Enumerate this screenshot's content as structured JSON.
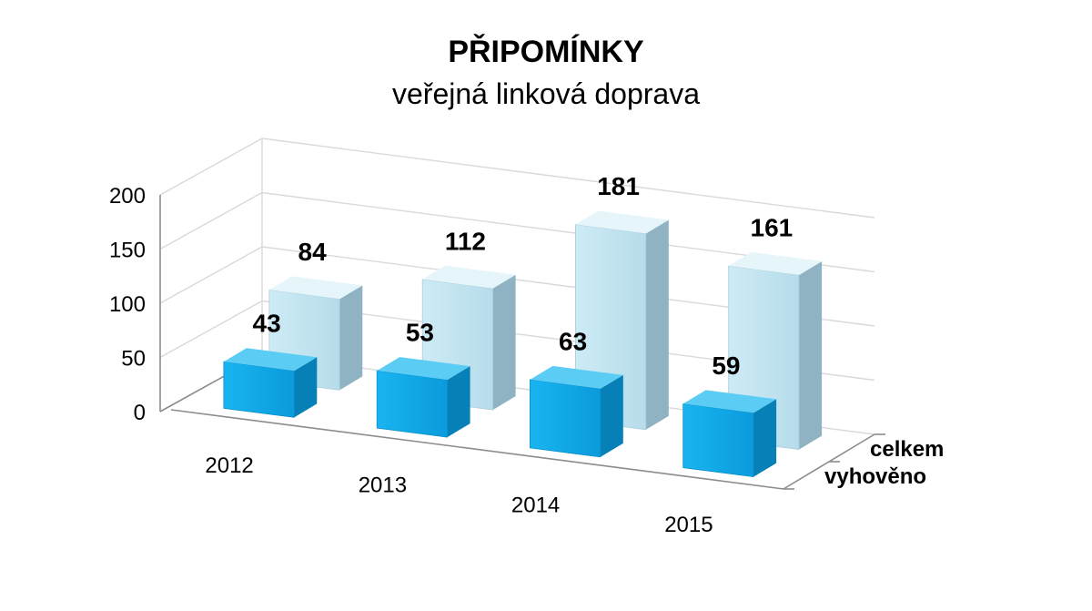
{
  "chart_data": {
    "type": "bar",
    "title": "PŘIPOMÍNKY",
    "subtitle": "veřejná linková doprava",
    "categories": [
      "2012",
      "2013",
      "2014",
      "2015"
    ],
    "series": [
      {
        "name": "vyhověno",
        "values": [
          43,
          53,
          63,
          59
        ],
        "color": "#0aa6e6"
      },
      {
        "name": "celkem",
        "values": [
          84,
          112,
          181,
          161
        ],
        "color": "#bfe3ef"
      }
    ],
    "ylim": [
      0,
      200
    ],
    "yticks": [
      "0",
      "50",
      "100",
      "150",
      "200"
    ],
    "xlabel": "",
    "ylabel": "",
    "grid": true,
    "legend": "series labels on right depth axis",
    "style": "3d-column"
  }
}
